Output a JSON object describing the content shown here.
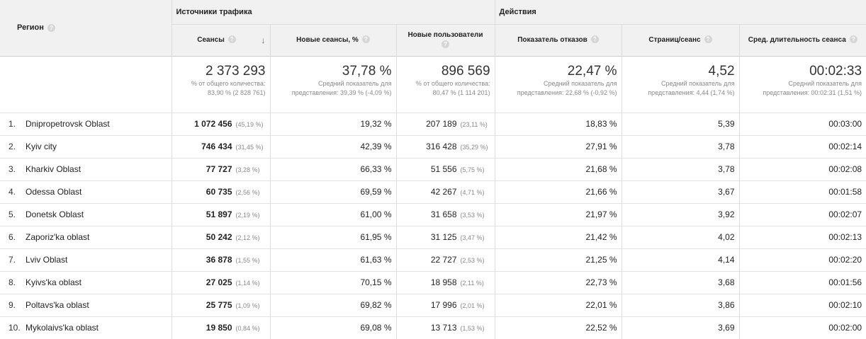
{
  "header": {
    "region_label": "Регион",
    "group_traffic": "Источники трафика",
    "group_actions": "Действия",
    "columns": [
      "Сеансы",
      "Новые сеансы, %",
      "Новые пользователи",
      "Показатель отказов",
      "Страниц/сеанс",
      "Сред. длительность сеанса"
    ]
  },
  "totals": [
    {
      "value": "2 373 293",
      "sub1": "% от общего количества:",
      "sub2": "83,90 % (2 828 761)"
    },
    {
      "value": "37,78 %",
      "sub1": "Средний показатель для",
      "sub2": "представления: 39,39 % (-4,09 %)"
    },
    {
      "value": "896 569",
      "sub1": "% от общего количества:",
      "sub2": "80,47 % (1 114 201)"
    },
    {
      "value": "22,47 %",
      "sub1": "Средний показатель для",
      "sub2": "представления: 22,68 % (-0,92 %)"
    },
    {
      "value": "4,52",
      "sub1": "Средний показатель для",
      "sub2": "представления: 4,44 (1,74 %)"
    },
    {
      "value": "00:02:33",
      "sub1": "Средний показатель для",
      "sub2": "представления: 00:02:31 (1,51 %)"
    }
  ],
  "rows": [
    {
      "n": "1.",
      "region": "Dnipropetrovsk Oblast",
      "sessions": "1 072 456",
      "sessions_pct": "(45,19 %)",
      "new_sessions": "19,32 %",
      "new_users": "207 189",
      "new_users_pct": "(23,11 %)",
      "bounce": "18,83 %",
      "pages": "5,39",
      "duration": "00:03:00"
    },
    {
      "n": "2.",
      "region": "Kyiv city",
      "sessions": "746 434",
      "sessions_pct": "(31,45 %)",
      "new_sessions": "42,39 %",
      "new_users": "316 428",
      "new_users_pct": "(35,29 %)",
      "bounce": "27,91 %",
      "pages": "3,78",
      "duration": "00:02:14"
    },
    {
      "n": "3.",
      "region": "Kharkiv Oblast",
      "sessions": "77 727",
      "sessions_pct": "(3,28 %)",
      "new_sessions": "66,33 %",
      "new_users": "51 556",
      "new_users_pct": "(5,75 %)",
      "bounce": "21,68 %",
      "pages": "3,78",
      "duration": "00:02:08"
    },
    {
      "n": "4.",
      "region": "Odessa Oblast",
      "sessions": "60 735",
      "sessions_pct": "(2,56 %)",
      "new_sessions": "69,59 %",
      "new_users": "42 267",
      "new_users_pct": "(4,71 %)",
      "bounce": "21,66 %",
      "pages": "3,67",
      "duration": "00:01:58"
    },
    {
      "n": "5.",
      "region": "Donetsk Oblast",
      "sessions": "51 897",
      "sessions_pct": "(2,19 %)",
      "new_sessions": "61,00 %",
      "new_users": "31 658",
      "new_users_pct": "(3,53 %)",
      "bounce": "21,97 %",
      "pages": "3,92",
      "duration": "00:02:07"
    },
    {
      "n": "6.",
      "region": "Zaporiz'ka oblast",
      "sessions": "50 242",
      "sessions_pct": "(2,12 %)",
      "new_sessions": "61,95 %",
      "new_users": "31 125",
      "new_users_pct": "(3,47 %)",
      "bounce": "21,42 %",
      "pages": "4,02",
      "duration": "00:02:13"
    },
    {
      "n": "7.",
      "region": "Lviv Oblast",
      "sessions": "36 878",
      "sessions_pct": "(1,55 %)",
      "new_sessions": "61,63 %",
      "new_users": "22 727",
      "new_users_pct": "(2,53 %)",
      "bounce": "21,25 %",
      "pages": "4,14",
      "duration": "00:02:20"
    },
    {
      "n": "8.",
      "region": "Kyivs'ka oblast",
      "sessions": "27 025",
      "sessions_pct": "(1,14 %)",
      "new_sessions": "70,15 %",
      "new_users": "18 958",
      "new_users_pct": "(2,11 %)",
      "bounce": "22,73 %",
      "pages": "3,68",
      "duration": "00:01:56"
    },
    {
      "n": "9.",
      "region": "Poltavs'ka oblast",
      "sessions": "25 775",
      "sessions_pct": "(1,09 %)",
      "new_sessions": "69,82 %",
      "new_users": "17 996",
      "new_users_pct": "(2,01 %)",
      "bounce": "22,01 %",
      "pages": "3,86",
      "duration": "00:02:10"
    },
    {
      "n": "10.",
      "region": "Mykolaivs'ka oblast",
      "sessions": "19 850",
      "sessions_pct": "(0,84 %)",
      "new_sessions": "69,08 %",
      "new_users": "13 713",
      "new_users_pct": "(1,53 %)",
      "bounce": "22,52 %",
      "pages": "3,69",
      "duration": "00:02:00"
    }
  ]
}
